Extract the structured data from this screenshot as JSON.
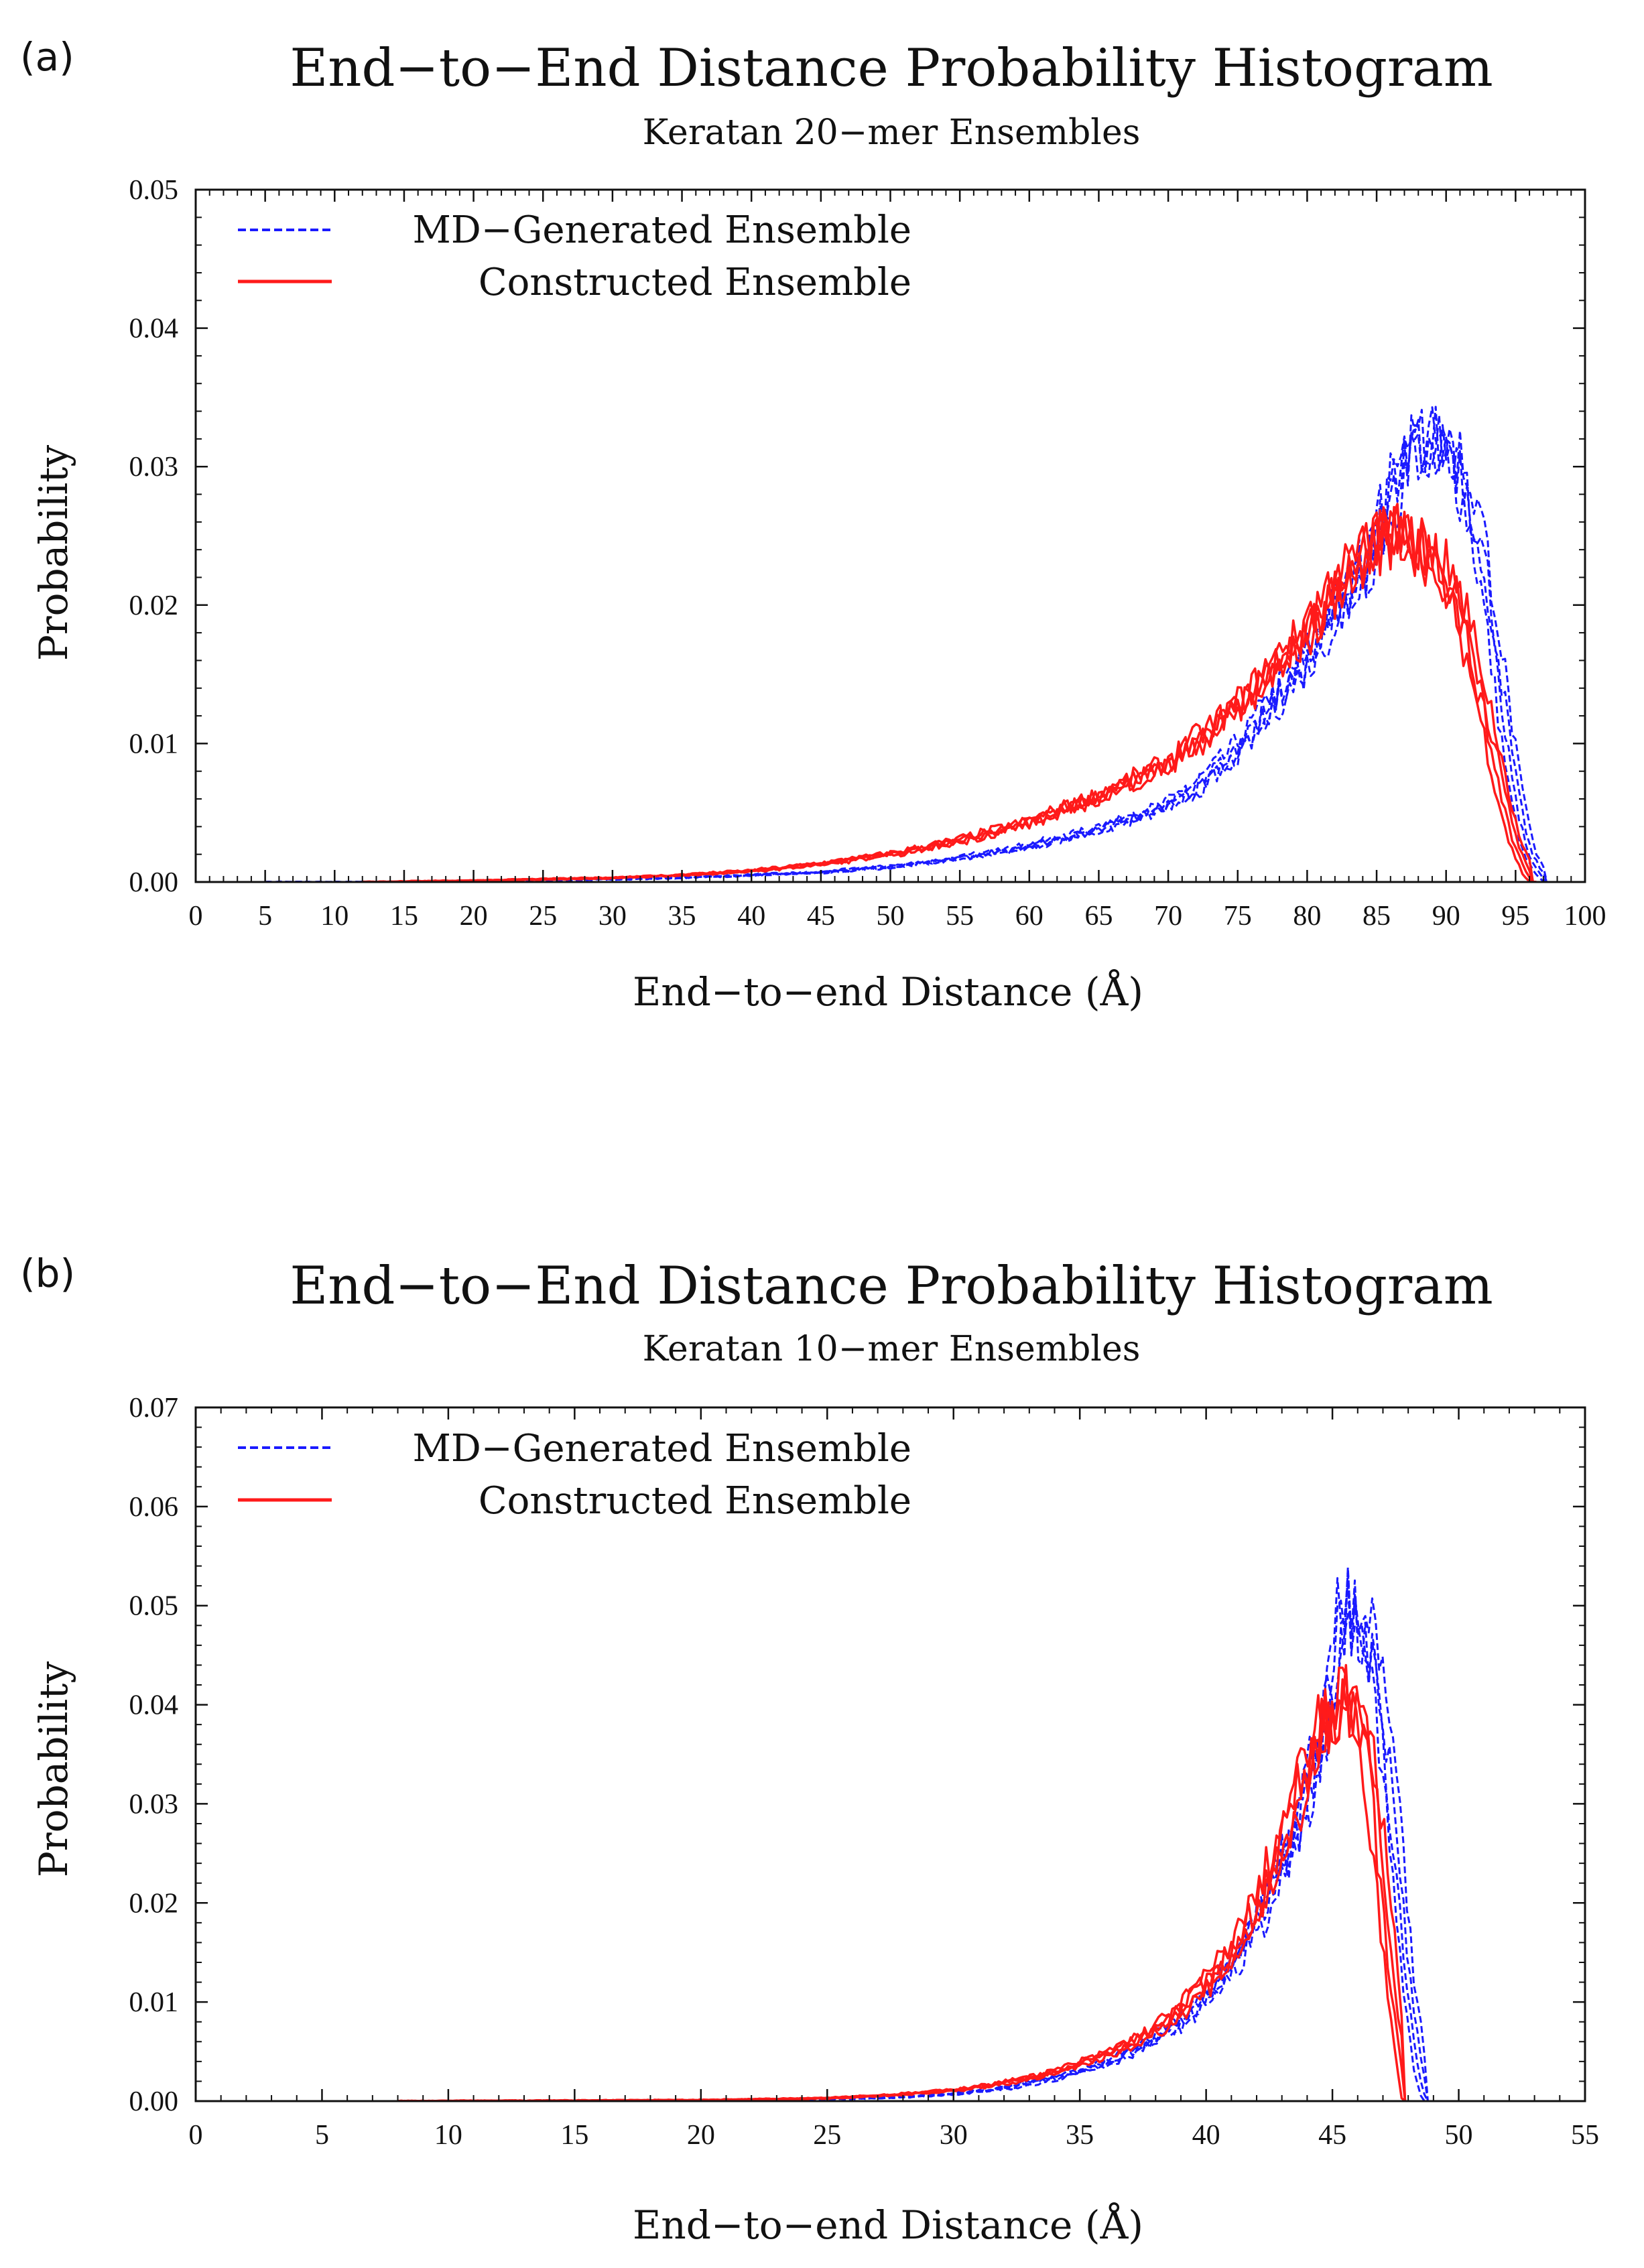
{
  "chart_data": [
    {
      "panel_label": "(a)",
      "type": "line",
      "title": "End−to−End Distance Probability Histogram",
      "subtitle": "Keratan 20−mer Ensembles",
      "xlabel": "End−to−end Distance (Å)",
      "ylabel": "Probability",
      "xlim": [
        0,
        100
      ],
      "ylim": [
        0,
        0.05
      ],
      "xticks": [
        "0",
        "5",
        "10",
        "15",
        "20",
        "25",
        "30",
        "35",
        "40",
        "45",
        "50",
        "55",
        "60",
        "65",
        "70",
        "75",
        "80",
        "85",
        "90",
        "95",
        "100"
      ],
      "yticks": [
        "0.00",
        "0.01",
        "0.02",
        "0.03",
        "0.04",
        "0.05"
      ],
      "legend": [
        {
          "label": "MD−Generated Ensemble",
          "color": "#1a1aff",
          "style": "dashed"
        },
        {
          "label": "Constructed Ensemble",
          "color": "#ff1a1a",
          "style": "solid"
        }
      ],
      "series": [
        {
          "name": "MD−Generated Ensemble",
          "color": "#1a1aff",
          "style": "dashed",
          "x": [
            5,
            10,
            20,
            30,
            35,
            40,
            45,
            50,
            55,
            60,
            65,
            70,
            72,
            75,
            78,
            80,
            82,
            84,
            85,
            86,
            87,
            88,
            89,
            90,
            91,
            92,
            93,
            94,
            95,
            96,
            97,
            97.5
          ],
          "y": [
            0.0,
            0.0,
            0.0,
            0.0002,
            0.0003,
            0.0005,
            0.0007,
            0.0011,
            0.0017,
            0.0026,
            0.0038,
            0.0055,
            0.0068,
            0.0095,
            0.0135,
            0.016,
            0.0195,
            0.0225,
            0.025,
            0.0275,
            0.03,
            0.032,
            0.0318,
            0.0315,
            0.03,
            0.0265,
            0.021,
            0.0135,
            0.0065,
            0.002,
            0.0004,
            0.0
          ]
        },
        {
          "name": "Constructed Ensemble",
          "color": "#ff1a1a",
          "style": "solid",
          "x": [
            12,
            20,
            30,
            35,
            40,
            45,
            50,
            55,
            60,
            65,
            70,
            75,
            78,
            80,
            82,
            84,
            85,
            86,
            87,
            88,
            89,
            90,
            91,
            92,
            93,
            94,
            95,
            96,
            96.5
          ],
          "y": [
            0.0,
            0.0001,
            0.0003,
            0.0005,
            0.0008,
            0.0013,
            0.002,
            0.003,
            0.0043,
            0.0062,
            0.0085,
            0.0125,
            0.0158,
            0.018,
            0.0215,
            0.0235,
            0.0245,
            0.025,
            0.0255,
            0.0245,
            0.0235,
            0.022,
            0.0195,
            0.016,
            0.0115,
            0.0068,
            0.0028,
            0.0005,
            0.0
          ]
        }
      ]
    },
    {
      "panel_label": "(b)",
      "type": "line",
      "title": "End−to−End Distance Probability Histogram",
      "subtitle": "Keratan 10−mer Ensembles",
      "xlabel": "End−to−end Distance (Å)",
      "ylabel": "Probability",
      "xlim": [
        0,
        55
      ],
      "ylim": [
        0,
        0.07
      ],
      "xticks": [
        "0",
        "5",
        "10",
        "15",
        "20",
        "25",
        "30",
        "35",
        "40",
        "45",
        "50",
        "55"
      ],
      "yticks": [
        "0.00",
        "0.01",
        "0.02",
        "0.03",
        "0.04",
        "0.05",
        "0.06",
        "0.07"
      ],
      "legend": [
        {
          "label": "MD−Generated Ensemble",
          "color": "#1a1aff",
          "style": "dashed"
        },
        {
          "label": "Constructed Ensemble",
          "color": "#ff1a1a",
          "style": "solid"
        }
      ],
      "series": [
        {
          "name": "MD−Generated Ensemble",
          "color": "#1a1aff",
          "style": "dashed",
          "x": [
            10,
            20,
            25,
            28,
            30,
            32,
            34,
            36,
            38,
            39,
            40,
            41,
            42,
            43,
            44,
            44.5,
            45,
            45.5,
            46,
            46.5,
            47,
            47.5,
            48,
            48.5,
            48.8
          ],
          "y": [
            0.0,
            0.0,
            0.0002,
            0.0004,
            0.0007,
            0.0013,
            0.0023,
            0.0038,
            0.0062,
            0.008,
            0.0105,
            0.0135,
            0.0178,
            0.0235,
            0.03,
            0.036,
            0.042,
            0.0505,
            0.0475,
            0.046,
            0.038,
            0.026,
            0.012,
            0.003,
            0.0
          ]
        },
        {
          "name": "Constructed Ensemble",
          "color": "#ff1a1a",
          "style": "solid",
          "x": [
            8,
            20,
            25,
            28,
            30,
            32,
            34,
            36,
            38,
            39,
            40,
            41,
            42,
            43,
            44,
            44.5,
            45,
            45.5,
            46,
            46.5,
            47,
            47.5,
            48
          ],
          "y": [
            0.0,
            0.0001,
            0.0003,
            0.0007,
            0.0011,
            0.0018,
            0.0029,
            0.0046,
            0.0072,
            0.0092,
            0.0118,
            0.015,
            0.0195,
            0.026,
            0.0335,
            0.037,
            0.039,
            0.041,
            0.0385,
            0.0335,
            0.0215,
            0.009,
            0.0
          ]
        }
      ]
    }
  ]
}
